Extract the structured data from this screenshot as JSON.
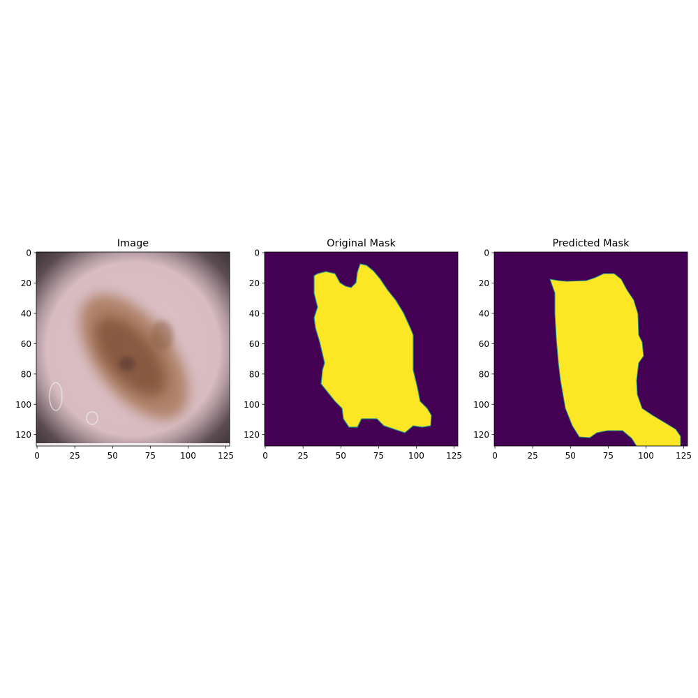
{
  "chart_data": [
    {
      "type": "image",
      "title": "Image",
      "xlim": [
        -0.5,
        127.5
      ],
      "ylim": [
        127.5,
        -0.5
      ],
      "xticks": [
        0,
        25,
        50,
        75,
        100,
        125
      ],
      "yticks": [
        0,
        20,
        40,
        60,
        80,
        100,
        120
      ]
    },
    {
      "type": "image",
      "title": "Original Mask",
      "xlim": [
        -0.5,
        127.5
      ],
      "ylim": [
        127.5,
        -0.5
      ],
      "xticks": [
        0,
        25,
        50,
        75,
        100,
        125
      ],
      "yticks": [
        0,
        20,
        40,
        60,
        80,
        100,
        120
      ]
    },
    {
      "type": "image",
      "title": "Predicted Mask",
      "xlim": [
        -0.5,
        127.5
      ],
      "ylim": [
        127.5,
        -0.5
      ],
      "xticks": [
        0,
        25,
        50,
        75,
        100,
        125
      ],
      "yticks": [
        0,
        20,
        40,
        60,
        80,
        100,
        120
      ]
    }
  ]
}
